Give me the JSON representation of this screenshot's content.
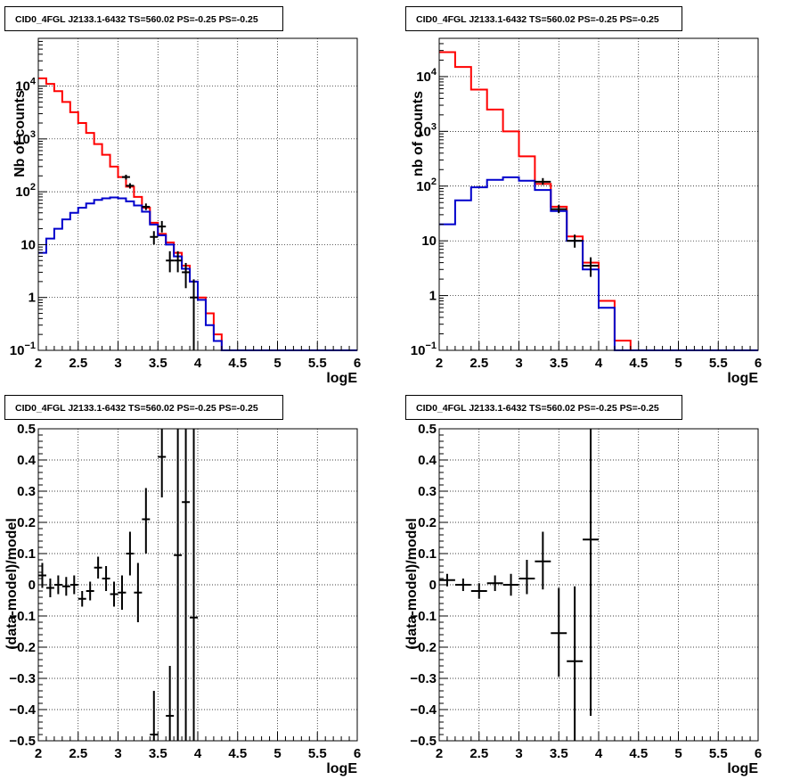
{
  "colors": {
    "model_total": "#ff0000",
    "model_source": "#0000cc",
    "data": "#000000",
    "grid": "#000000"
  },
  "chart_data": [
    {
      "type": "histogram",
      "title": "CID0_4FGL J2133.1-6432 TS=560.02 PS=-0.25 PS=-0.25",
      "xlabel": "logE",
      "ylabel": "Nb of counts",
      "log_y": true,
      "grid": true,
      "xlim": [
        2,
        6
      ],
      "ylim": [
        0.1,
        80000
      ],
      "xticks": [
        "2",
        "2.5",
        "3",
        "3.5",
        "4",
        "4.5",
        "5",
        "5.5",
        "6"
      ],
      "yticks": [
        {
          "value": 0.1,
          "label": "10",
          "exp": "−1"
        },
        {
          "value": 1,
          "label": "1",
          "exp": ""
        },
        {
          "value": 10,
          "label": "10",
          "exp": ""
        },
        {
          "value": 100,
          "label": "10",
          "exp": "2"
        },
        {
          "value": 1000,
          "label": "10",
          "exp": "3"
        },
        {
          "value": 10000,
          "label": "10",
          "exp": "4"
        }
      ],
      "bin_edges": [
        2,
        2.1,
        2.2,
        2.3,
        2.4,
        2.5,
        2.6,
        2.7,
        2.8,
        2.9,
        3,
        3.1,
        3.2,
        3.3,
        3.4,
        3.5,
        3.6,
        3.7,
        3.8,
        3.9,
        4,
        4.1,
        4.2,
        4.3,
        6
      ],
      "series": [
        {
          "values": [
            14000,
            11000,
            8000,
            5000,
            3200,
            2000,
            1300,
            800,
            500,
            300,
            190,
            125,
            80,
            50,
            26,
            16,
            11,
            7,
            4,
            2,
            1,
            0.5,
            0.2,
            0.1
          ],
          "color": "#ff0000"
        },
        {
          "values": [
            7,
            13,
            20,
            30,
            40,
            50,
            60,
            70,
            75,
            78,
            75,
            66,
            55,
            42,
            24,
            15,
            10,
            6,
            3.5,
            2,
            0.9,
            0.3,
            0.15,
            0.1
          ],
          "color": "#0000cc"
        }
      ],
      "points": [
        {
          "x": 3.1,
          "y": 190,
          "ylo": 170,
          "yhi": 210,
          "xerr": 0.05
        },
        {
          "x": 3.15,
          "y": 130,
          "ylo": 115,
          "yhi": 145,
          "xerr": 0.05
        },
        {
          "x": 3.35,
          "y": 52,
          "ylo": 45,
          "yhi": 60,
          "xerr": 0.05
        },
        {
          "x": 3.45,
          "y": 14,
          "ylo": 10,
          "yhi": 18,
          "xerr": 0.05
        },
        {
          "x": 3.55,
          "y": 22,
          "ylo": 17,
          "yhi": 28,
          "xerr": 0.05
        },
        {
          "x": 3.65,
          "y": 5,
          "ylo": 3,
          "yhi": 7.5,
          "xerr": 0.05
        },
        {
          "x": 3.75,
          "y": 5,
          "ylo": 3,
          "yhi": 7.5,
          "xerr": 0.05
        },
        {
          "x": 3.85,
          "y": 3,
          "ylo": 1.5,
          "yhi": 4.5,
          "xerr": 0.05
        },
        {
          "x": 3.95,
          "y": 1,
          "ylo": 0.1,
          "yhi": 2.2,
          "xerr": 0.05
        }
      ]
    },
    {
      "type": "histogram",
      "title": "CID0_4FGL J2133.1-6432 TS=560.02 PS=-0.25 PS=-0.25",
      "xlabel": "logE",
      "ylabel": "nb of counts",
      "log_y": true,
      "grid": true,
      "xlim": [
        2,
        6
      ],
      "ylim": [
        0.1,
        50000
      ],
      "xticks": [
        "2",
        "2.5",
        "3",
        "3.5",
        "4",
        "4.5",
        "5",
        "5.5",
        "6"
      ],
      "yticks": [
        {
          "value": 0.1,
          "label": "10",
          "exp": "−1"
        },
        {
          "value": 1,
          "label": "1",
          "exp": ""
        },
        {
          "value": 10,
          "label": "10",
          "exp": ""
        },
        {
          "value": 100,
          "label": "10",
          "exp": "2"
        },
        {
          "value": 1000,
          "label": "10",
          "exp": "3"
        },
        {
          "value": 10000,
          "label": "10",
          "exp": "4"
        }
      ],
      "bin_edges": [
        2,
        2.2,
        2.4,
        2.6,
        2.8,
        3,
        3.2,
        3.4,
        3.6,
        3.8,
        4,
        4.2,
        4.4,
        6
      ],
      "series": [
        {
          "values": [
            28000,
            15000,
            5800,
            2500,
            1000,
            350,
            110,
            42,
            12,
            4,
            0.8,
            0.15,
            0.1
          ],
          "color": "#ff0000"
        },
        {
          "values": [
            20,
            55,
            95,
            130,
            145,
            125,
            85,
            35,
            10,
            3,
            0.6,
            0.1,
            0.1
          ],
          "color": "#0000cc"
        }
      ],
      "points": [
        {
          "x": 3.3,
          "y": 120,
          "ylo": 105,
          "yhi": 140,
          "xerr": 0.1
        },
        {
          "x": 3.5,
          "y": 38,
          "ylo": 32,
          "yhi": 45,
          "xerr": 0.1
        },
        {
          "x": 3.7,
          "y": 10,
          "ylo": 7.5,
          "yhi": 13,
          "xerr": 0.1
        },
        {
          "x": 3.9,
          "y": 3.5,
          "ylo": 2.2,
          "yhi": 5,
          "xerr": 0.1
        }
      ]
    },
    {
      "type": "scatter",
      "title": "CID0_4FGL J2133.1-6432 TS=560.02 PS=-0.25 PS=-0.25",
      "xlabel": "logE",
      "ylabel": "(data-model)/model",
      "log_y": false,
      "grid": true,
      "xlim": [
        2,
        6
      ],
      "ylim": [
        -0.5,
        0.5
      ],
      "xticks": [
        "2",
        "2.5",
        "3",
        "3.5",
        "4",
        "4.5",
        "5",
        "5.5",
        "6"
      ],
      "yticks": [
        {
          "value": -0.5,
          "label": "−0.5"
        },
        {
          "value": -0.4,
          "label": "−0.4"
        },
        {
          "value": -0.3,
          "label": "−0.3"
        },
        {
          "value": -0.2,
          "label": "−0.2"
        },
        {
          "value": -0.1,
          "label": "−0.1"
        },
        {
          "value": 0,
          "label": "0"
        },
        {
          "value": 0.1,
          "label": "0.1"
        },
        {
          "value": 0.2,
          "label": "0.2"
        },
        {
          "value": 0.3,
          "label": "0.3"
        },
        {
          "value": 0.4,
          "label": "0.4"
        },
        {
          "value": 0.5,
          "label": "0.5"
        }
      ],
      "points": [
        {
          "x": 2.05,
          "y": 0.03,
          "ylo": -0.01,
          "yhi": 0.07,
          "xerr": 0.05
        },
        {
          "x": 2.15,
          "y": -0.01,
          "ylo": -0.04,
          "yhi": 0.02,
          "xerr": 0.05
        },
        {
          "x": 2.25,
          "y": 0.0,
          "ylo": -0.03,
          "yhi": 0.03,
          "xerr": 0.05
        },
        {
          "x": 2.35,
          "y": -0.005,
          "ylo": -0.035,
          "yhi": 0.025,
          "xerr": 0.05
        },
        {
          "x": 2.45,
          "y": 0.0,
          "ylo": -0.03,
          "yhi": 0.03,
          "xerr": 0.05
        },
        {
          "x": 2.55,
          "y": -0.045,
          "ylo": -0.07,
          "yhi": -0.02,
          "xerr": 0.05
        },
        {
          "x": 2.65,
          "y": -0.02,
          "ylo": -0.05,
          "yhi": 0.01,
          "xerr": 0.05
        },
        {
          "x": 2.75,
          "y": 0.055,
          "ylo": 0.02,
          "yhi": 0.09,
          "xerr": 0.05
        },
        {
          "x": 2.85,
          "y": 0.02,
          "ylo": -0.02,
          "yhi": 0.06,
          "xerr": 0.05
        },
        {
          "x": 2.95,
          "y": -0.03,
          "ylo": -0.07,
          "yhi": 0.01,
          "xerr": 0.05
        },
        {
          "x": 3.05,
          "y": -0.025,
          "ylo": -0.08,
          "yhi": 0.03,
          "xerr": 0.05
        },
        {
          "x": 3.15,
          "y": 0.1,
          "ylo": 0.03,
          "yhi": 0.17,
          "xerr": 0.05
        },
        {
          "x": 3.25,
          "y": -0.025,
          "ylo": -0.12,
          "yhi": 0.07,
          "xerr": 0.05
        },
        {
          "x": 3.35,
          "y": 0.21,
          "ylo": 0.1,
          "yhi": 0.31,
          "xerr": 0.05
        },
        {
          "x": 3.45,
          "y": -0.48,
          "ylo": -0.5,
          "yhi": -0.34,
          "xerr": 0.05
        },
        {
          "x": 3.55,
          "y": 0.41,
          "ylo": 0.28,
          "yhi": 0.5,
          "xerr": 0.05
        },
        {
          "x": 3.65,
          "y": -0.42,
          "ylo": -0.5,
          "yhi": -0.26,
          "xerr": 0.05
        },
        {
          "x": 3.75,
          "y": 0.095,
          "ylo": -0.5,
          "yhi": 0.5,
          "xerr": 0.05
        },
        {
          "x": 3.85,
          "y": 0.265,
          "ylo": -0.5,
          "yhi": 0.5,
          "xerr": 0.05
        },
        {
          "x": 3.95,
          "y": -0.105,
          "ylo": -0.5,
          "yhi": 0.5,
          "xerr": 0.05
        }
      ]
    },
    {
      "type": "scatter",
      "title": "CID0_4FGL J2133.1-6432 TS=560.02 PS=-0.25 PS=-0.25",
      "xlabel": "logE",
      "ylabel": "(data-model)/model",
      "log_y": false,
      "grid": true,
      "xlim": [
        2,
        6
      ],
      "ylim": [
        -0.5,
        0.5
      ],
      "xticks": [
        "2",
        "2.5",
        "3",
        "3.5",
        "4",
        "4.5",
        "5",
        "5.5",
        "6"
      ],
      "yticks": [
        {
          "value": -0.5,
          "label": "−0.5"
        },
        {
          "value": -0.4,
          "label": "−0.4"
        },
        {
          "value": -0.3,
          "label": "−0.3"
        },
        {
          "value": -0.2,
          "label": "−0.2"
        },
        {
          "value": -0.1,
          "label": "−0.1"
        },
        {
          "value": 0,
          "label": "0"
        },
        {
          "value": 0.1,
          "label": "0.1"
        },
        {
          "value": 0.2,
          "label": "0.2"
        },
        {
          "value": 0.3,
          "label": "0.3"
        },
        {
          "value": 0.4,
          "label": "0.4"
        },
        {
          "value": 0.5,
          "label": "0.5"
        }
      ],
      "points": [
        {
          "x": 2.1,
          "y": 0.015,
          "ylo": -0.005,
          "yhi": 0.035,
          "xerr": 0.1
        },
        {
          "x": 2.3,
          "y": 0.0,
          "ylo": -0.02,
          "yhi": 0.02,
          "xerr": 0.1
        },
        {
          "x": 2.5,
          "y": -0.02,
          "ylo": -0.045,
          "yhi": 0.005,
          "xerr": 0.1
        },
        {
          "x": 2.7,
          "y": 0.005,
          "ylo": -0.02,
          "yhi": 0.03,
          "xerr": 0.1
        },
        {
          "x": 2.9,
          "y": 0.0,
          "ylo": -0.035,
          "yhi": 0.035,
          "xerr": 0.1
        },
        {
          "x": 3.1,
          "y": 0.02,
          "ylo": -0.03,
          "yhi": 0.08,
          "xerr": 0.1
        },
        {
          "x": 3.3,
          "y": 0.075,
          "ylo": -0.015,
          "yhi": 0.17,
          "xerr": 0.1
        },
        {
          "x": 3.5,
          "y": -0.155,
          "ylo": -0.295,
          "yhi": -0.01,
          "xerr": 0.1
        },
        {
          "x": 3.7,
          "y": -0.245,
          "ylo": -0.5,
          "yhi": -0.005,
          "xerr": 0.1
        },
        {
          "x": 3.9,
          "y": 0.145,
          "ylo": -0.42,
          "yhi": 0.5,
          "xerr": 0.1
        }
      ]
    }
  ]
}
